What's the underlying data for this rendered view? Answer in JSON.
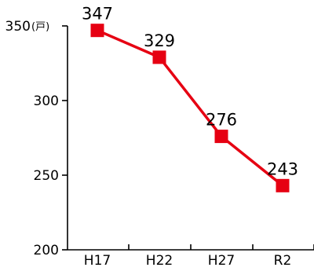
{
  "chart_data": {
    "type": "line",
    "categories": [
      "H17",
      "H22",
      "H27",
      "R2"
    ],
    "series": [
      {
        "values": [
          347,
          329,
          276,
          243
        ]
      }
    ],
    "ylim": [
      200,
      350
    ],
    "yticks": [
      200,
      250,
      300,
      350
    ],
    "yunit": "(戸)",
    "title": "",
    "xlabel": "",
    "ylabel": "",
    "grid": false,
    "legend": "none",
    "colors": {
      "series": "#e60012",
      "axis": "#000000",
      "text": "#000000"
    }
  }
}
